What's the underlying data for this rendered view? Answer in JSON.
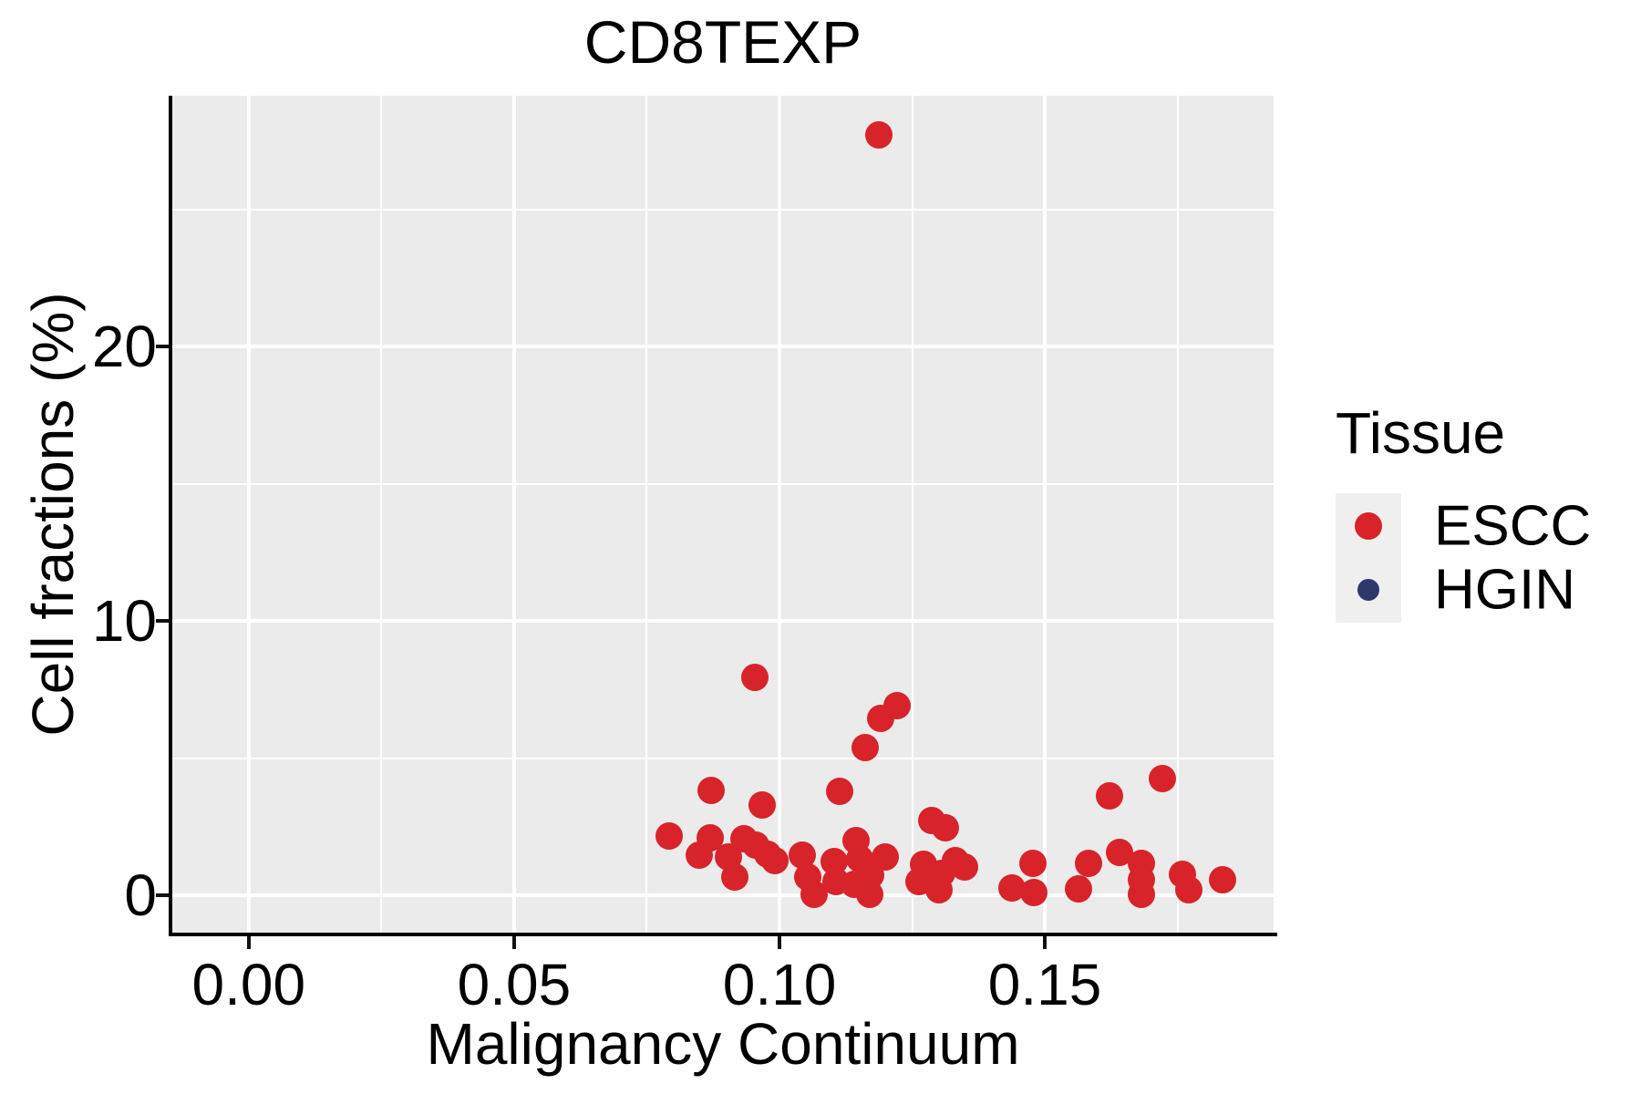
{
  "title": "CD8TEXP",
  "colors": {
    "escc": "#D8232A",
    "hgin": "#2F386B",
    "panel_background": "#EBEBEB",
    "gridline": "#FFFFFF",
    "axis_line": "#000000",
    "legend_key_background": "#EFEFEF",
    "text": "#000000"
  },
  "legend": {
    "title": "Tissue",
    "position": "right",
    "entries": [
      {
        "label": "ESCC",
        "color": "#D8232A"
      },
      {
        "label": "HGIN",
        "color": "#2F386B"
      }
    ]
  },
  "chart_data": {
    "type": "scatter",
    "title": "CD8TEXP",
    "xlabel": "Malignancy Continuum",
    "ylabel": "Cell fractions (%)",
    "xlim": [
      -0.0144,
      0.1931
    ],
    "ylim": [
      -1.36,
      29.14
    ],
    "x_ticks": [
      0.0,
      0.05,
      0.1,
      0.15
    ],
    "x_tick_labels": [
      "0.00",
      "0.05",
      "0.10",
      "0.15"
    ],
    "y_ticks": [
      0,
      10,
      20
    ],
    "y_tick_labels": [
      "0",
      "10",
      "20"
    ],
    "x_minor_gridlines": [
      0.025,
      0.075,
      0.125,
      0.175
    ],
    "y_minor_gridlines": [
      5,
      15,
      25
    ],
    "grid": true,
    "legend_title": "Tissue",
    "series": [
      {
        "name": "ESCC",
        "color": "#D8232A",
        "points": [
          [
            0.0793,
            2.15
          ],
          [
            0.0848,
            1.45
          ],
          [
            0.087,
            2.08
          ],
          [
            0.0871,
            3.83
          ],
          [
            0.0904,
            1.4
          ],
          [
            0.0916,
            0.67
          ],
          [
            0.0933,
            2.05
          ],
          [
            0.0955,
            1.84
          ],
          [
            0.0977,
            1.5
          ],
          [
            0.0991,
            1.27
          ],
          [
            0.0954,
            7.95
          ],
          [
            0.0967,
            3.28
          ],
          [
            0.1043,
            1.45
          ],
          [
            0.1054,
            0.67
          ],
          [
            0.1065,
            0.02
          ],
          [
            0.1103,
            1.23
          ],
          [
            0.1106,
            0.51
          ],
          [
            0.1113,
            3.8
          ],
          [
            0.114,
            0.4
          ],
          [
            0.1144,
            2.0
          ],
          [
            0.1151,
            1.34
          ],
          [
            0.117,
            0.02
          ],
          [
            0.1172,
            0.73
          ],
          [
            0.1199,
            1.4
          ],
          [
            0.1161,
            5.38
          ],
          [
            0.1191,
            6.44
          ],
          [
            0.1222,
            6.9
          ],
          [
            0.1187,
            27.72
          ],
          [
            0.1263,
            0.51
          ],
          [
            0.1271,
            1.12
          ],
          [
            0.1286,
            2.72
          ],
          [
            0.13,
            0.2
          ],
          [
            0.1306,
            0.8
          ],
          [
            0.1312,
            2.45
          ],
          [
            0.1332,
            1.25
          ],
          [
            0.1349,
            1.04
          ],
          [
            0.1438,
            0.28
          ],
          [
            0.1477,
            1.17
          ],
          [
            0.148,
            0.1
          ],
          [
            0.1564,
            0.23
          ],
          [
            0.1583,
            1.17
          ],
          [
            0.1622,
            3.63
          ],
          [
            0.1641,
            1.56
          ],
          [
            0.1682,
            1.17
          ],
          [
            0.1682,
            0.56
          ],
          [
            0.1682,
            0.02
          ],
          [
            0.1721,
            4.24
          ],
          [
            0.1759,
            0.75
          ],
          [
            0.1771,
            0.2
          ],
          [
            0.1834,
            0.56
          ]
        ]
      },
      {
        "name": "HGIN",
        "color": "#2F386B",
        "points": []
      }
    ]
  }
}
